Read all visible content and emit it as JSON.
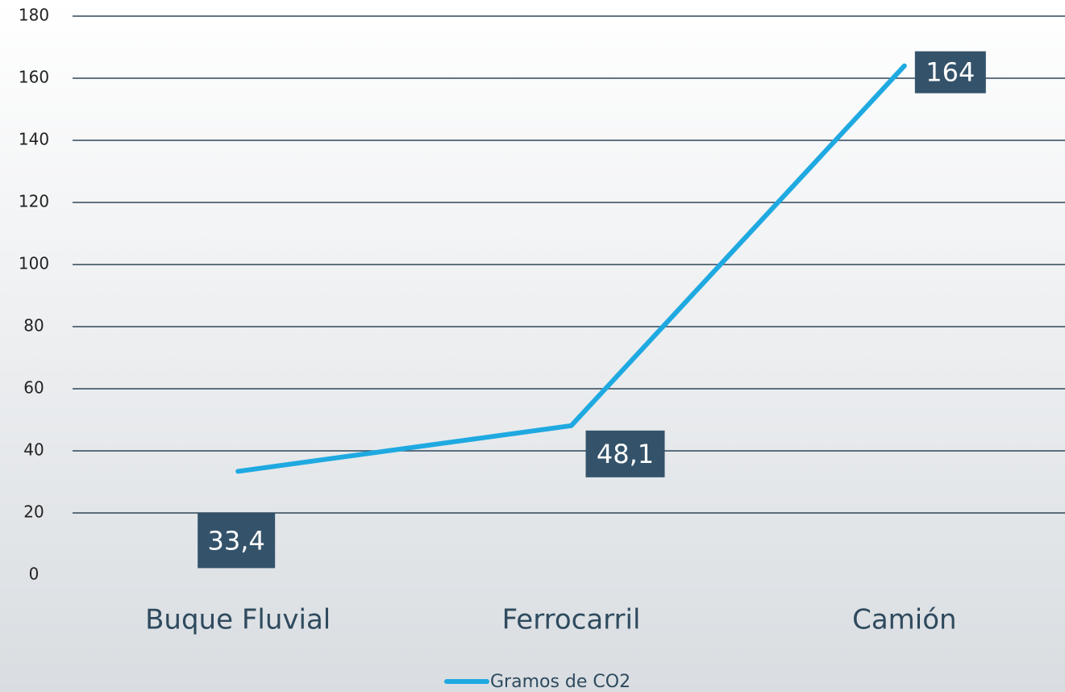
{
  "chart_data": {
    "type": "line",
    "categories": [
      "Buque Fluvial",
      "Ferrocarril",
      "Camión"
    ],
    "series": [
      {
        "name": "Gramos de CO2",
        "color": "#1fa9e1",
        "values": [
          33.4,
          48.1,
          164
        ],
        "value_labels": [
          "33,4",
          "48,1",
          "164"
        ]
      }
    ],
    "ylim": [
      0,
      180
    ],
    "yticks": [
      0,
      20,
      40,
      60,
      80,
      100,
      120,
      140,
      160,
      180
    ],
    "grid": true,
    "legend": "bottom",
    "label_color": "#34536b"
  }
}
